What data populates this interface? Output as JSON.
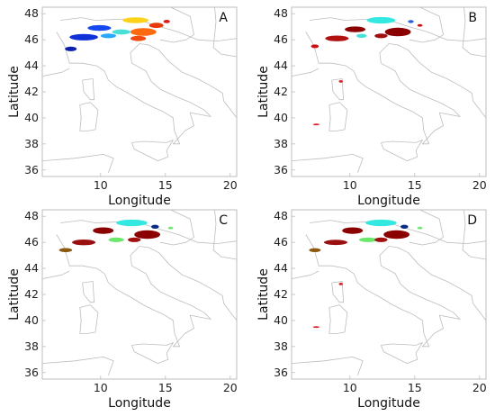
{
  "chart_data": [
    {
      "type": "scatter",
      "panel_label": "A",
      "xlabel": "Longitude",
      "ylabel": "Latitude",
      "xlim": [
        5.5,
        20.5
      ],
      "ylim": [
        35.5,
        48.5
      ],
      "x_ticks": [
        10,
        15,
        20
      ],
      "y_ticks": [
        36,
        38,
        40,
        42,
        44,
        46,
        48
      ],
      "grid": false,
      "regions": [
        {
          "lon": 7.7,
          "lat": 45.3,
          "rx": 0.45,
          "ry": 0.18,
          "color": "#0a1fb0"
        },
        {
          "lon": 8.7,
          "lat": 46.2,
          "rx": 1.1,
          "ry": 0.25,
          "color": "#1030d8"
        },
        {
          "lon": 9.9,
          "lat": 46.9,
          "rx": 0.9,
          "ry": 0.22,
          "color": "#1548ee"
        },
        {
          "lon": 10.6,
          "lat": 46.3,
          "rx": 0.6,
          "ry": 0.18,
          "color": "#2aa8ff"
        },
        {
          "lon": 11.6,
          "lat": 46.6,
          "rx": 0.7,
          "ry": 0.2,
          "color": "#49e0d8"
        },
        {
          "lon": 12.7,
          "lat": 47.5,
          "rx": 1.0,
          "ry": 0.22,
          "color": "#ffd21a"
        },
        {
          "lon": 13.3,
          "lat": 46.6,
          "rx": 1.0,
          "ry": 0.3,
          "color": "#ff6a10"
        },
        {
          "lon": 12.9,
          "lat": 46.1,
          "rx": 0.6,
          "ry": 0.2,
          "color": "#f04a10"
        },
        {
          "lon": 14.3,
          "lat": 47.1,
          "rx": 0.55,
          "ry": 0.2,
          "color": "#e63a0a"
        },
        {
          "lon": 15.1,
          "lat": 47.4,
          "rx": 0.25,
          "ry": 0.13,
          "color": "#d82020"
        }
      ]
    },
    {
      "type": "scatter",
      "panel_label": "B",
      "xlabel": "Longitude",
      "ylabel": "Latitude",
      "xlim": [
        5.5,
        20.5
      ],
      "ylim": [
        35.5,
        48.5
      ],
      "x_ticks": [
        10,
        15,
        20
      ],
      "y_ticks": [
        36,
        38,
        40,
        42,
        44,
        46,
        48
      ],
      "grid": false,
      "regions": [
        {
          "lon": 7.3,
          "lat": 45.5,
          "rx": 0.3,
          "ry": 0.14,
          "color": "#cc1010"
        },
        {
          "lon": 9.0,
          "lat": 46.1,
          "rx": 0.9,
          "ry": 0.22,
          "color": "#b01010"
        },
        {
          "lon": 10.4,
          "lat": 46.8,
          "rx": 0.8,
          "ry": 0.22,
          "color": "#8b0000"
        },
        {
          "lon": 10.9,
          "lat": 46.3,
          "rx": 0.4,
          "ry": 0.15,
          "color": "#49e0d8"
        },
        {
          "lon": 12.4,
          "lat": 47.5,
          "rx": 1.1,
          "ry": 0.25,
          "color": "#33e8e0"
        },
        {
          "lon": 13.7,
          "lat": 46.6,
          "rx": 1.0,
          "ry": 0.33,
          "color": "#8b0000"
        },
        {
          "lon": 12.4,
          "lat": 46.3,
          "rx": 0.5,
          "ry": 0.18,
          "color": "#a01010"
        },
        {
          "lon": 14.7,
          "lat": 47.4,
          "rx": 0.22,
          "ry": 0.12,
          "color": "#2a60d8"
        },
        {
          "lon": 15.4,
          "lat": 47.1,
          "rx": 0.2,
          "ry": 0.1,
          "color": "#cc1010"
        },
        {
          "lon": 9.3,
          "lat": 42.8,
          "rx": 0.15,
          "ry": 0.1,
          "color": "#dd2020"
        },
        {
          "lon": 7.4,
          "lat": 39.5,
          "rx": 0.25,
          "ry": 0.06,
          "color": "#dd2020"
        }
      ]
    },
    {
      "type": "scatter",
      "panel_label": "C",
      "xlabel": "Longitude",
      "ylabel": "Latitude",
      "xlim": [
        5.5,
        20.5
      ],
      "ylim": [
        35.5,
        48.5
      ],
      "x_ticks": [
        10,
        15,
        20
      ],
      "y_ticks": [
        36,
        38,
        40,
        42,
        44,
        46,
        48
      ],
      "grid": false,
      "regions": [
        {
          "lon": 7.3,
          "lat": 45.4,
          "rx": 0.5,
          "ry": 0.16,
          "color": "#8b5a10"
        },
        {
          "lon": 8.7,
          "lat": 46.0,
          "rx": 0.9,
          "ry": 0.22,
          "color": "#9a1010"
        },
        {
          "lon": 10.2,
          "lat": 46.9,
          "rx": 0.8,
          "ry": 0.25,
          "color": "#8b0000"
        },
        {
          "lon": 11.2,
          "lat": 46.2,
          "rx": 0.6,
          "ry": 0.18,
          "color": "#6be86b"
        },
        {
          "lon": 12.4,
          "lat": 47.5,
          "rx": 1.2,
          "ry": 0.25,
          "color": "#33e8e0"
        },
        {
          "lon": 13.6,
          "lat": 46.6,
          "rx": 1.0,
          "ry": 0.33,
          "color": "#8b0000"
        },
        {
          "lon": 12.6,
          "lat": 46.2,
          "rx": 0.5,
          "ry": 0.18,
          "color": "#a01010"
        },
        {
          "lon": 14.2,
          "lat": 47.2,
          "rx": 0.3,
          "ry": 0.15,
          "color": "#0a2a8a"
        },
        {
          "lon": 15.4,
          "lat": 47.1,
          "rx": 0.2,
          "ry": 0.1,
          "color": "#6be86b"
        }
      ]
    },
    {
      "type": "scatter",
      "panel_label": "D",
      "xlabel": "Longitude",
      "ylabel": "Latitude",
      "xlim": [
        5.5,
        20.5
      ],
      "ylim": [
        35.5,
        48.5
      ],
      "x_ticks": [
        10,
        15,
        20
      ],
      "y_ticks": [
        36,
        38,
        40,
        42,
        44,
        46,
        48
      ],
      "grid": false,
      "regions": [
        {
          "lon": 7.3,
          "lat": 45.4,
          "rx": 0.45,
          "ry": 0.15,
          "color": "#8b5a10"
        },
        {
          "lon": 8.9,
          "lat": 46.0,
          "rx": 0.9,
          "ry": 0.2,
          "color": "#9a1010"
        },
        {
          "lon": 10.2,
          "lat": 46.9,
          "rx": 0.8,
          "ry": 0.25,
          "color": "#8b0000"
        },
        {
          "lon": 11.4,
          "lat": 46.2,
          "rx": 0.7,
          "ry": 0.18,
          "color": "#6be86b"
        },
        {
          "lon": 12.4,
          "lat": 47.5,
          "rx": 1.2,
          "ry": 0.25,
          "color": "#33e8e0"
        },
        {
          "lon": 13.6,
          "lat": 46.6,
          "rx": 1.0,
          "ry": 0.33,
          "color": "#8b0000"
        },
        {
          "lon": 12.4,
          "lat": 46.2,
          "rx": 0.5,
          "ry": 0.18,
          "color": "#a01010"
        },
        {
          "lon": 14.2,
          "lat": 47.2,
          "rx": 0.3,
          "ry": 0.15,
          "color": "#0a2a8a"
        },
        {
          "lon": 15.4,
          "lat": 47.1,
          "rx": 0.2,
          "ry": 0.1,
          "color": "#6be86b"
        },
        {
          "lon": 9.3,
          "lat": 42.8,
          "rx": 0.15,
          "ry": 0.1,
          "color": "#dd2020"
        },
        {
          "lon": 7.4,
          "lat": 39.5,
          "rx": 0.25,
          "ry": 0.06,
          "color": "#dd2020"
        }
      ]
    }
  ]
}
